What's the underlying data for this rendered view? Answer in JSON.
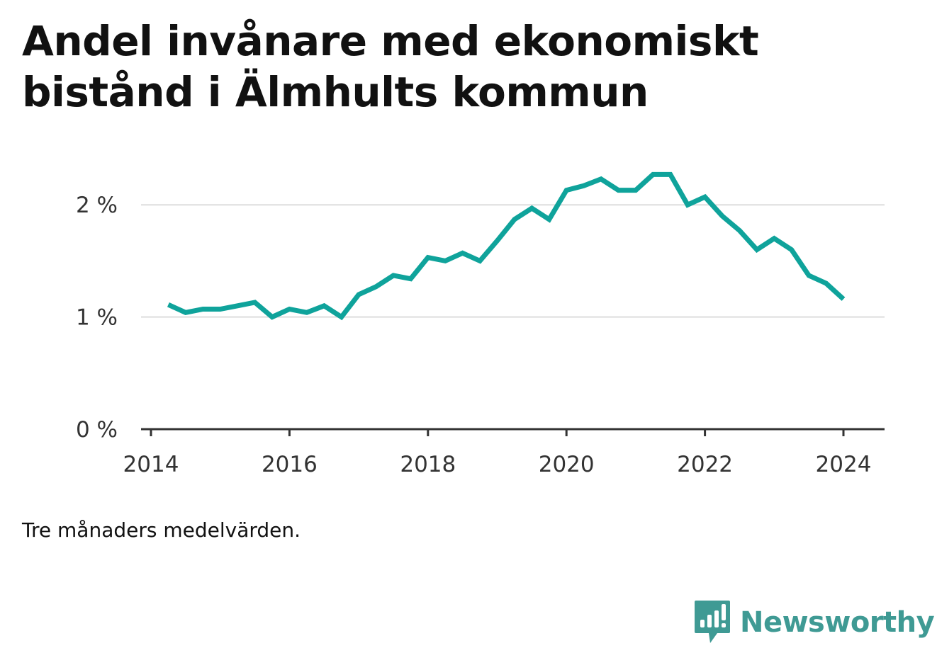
{
  "header": {
    "title": "Andel invånare med ekonomiskt bistånd i Älmhults kommun"
  },
  "footer": {
    "caption": "Tre månaders medelvärden.",
    "brand": "Newsworthy"
  },
  "colors": {
    "line": "#0fa39b",
    "grid": "#dddddd",
    "axis": "#333333",
    "brand": "#3f9a94"
  },
  "chart_data": {
    "type": "line",
    "title": "Andel invånare med ekonomiskt bistånd i Älmhults kommun",
    "xlabel": "",
    "ylabel": "",
    "ylim": [
      0,
      2.5
    ],
    "xlim": [
      "2014-01",
      "2024-08"
    ],
    "grid": true,
    "legend": "none",
    "y_ticks": [
      {
        "value": 0,
        "label": "0 %"
      },
      {
        "value": 1,
        "label": "1 %"
      },
      {
        "value": 2,
        "label": "2 %"
      }
    ],
    "x_ticks": [
      {
        "value": "2014-01",
        "label": "2014"
      },
      {
        "value": "2016-01",
        "label": "2016"
      },
      {
        "value": "2018-01",
        "label": "2018"
      },
      {
        "value": "2020-01",
        "label": "2020"
      },
      {
        "value": "2022-01",
        "label": "2022"
      },
      {
        "value": "2024-01",
        "label": "2024"
      }
    ],
    "series": [
      {
        "values": [
          {
            "x": "2014-04",
            "y": 1.11
          },
          {
            "x": "2014-07",
            "y": 1.04
          },
          {
            "x": "2014-10",
            "y": 1.07
          },
          {
            "x": "2015-01",
            "y": 1.07
          },
          {
            "x": "2015-04",
            "y": 1.1
          },
          {
            "x": "2015-07",
            "y": 1.13
          },
          {
            "x": "2015-10",
            "y": 1.0
          },
          {
            "x": "2016-01",
            "y": 1.07
          },
          {
            "x": "2016-04",
            "y": 1.04
          },
          {
            "x": "2016-07",
            "y": 1.1
          },
          {
            "x": "2016-10",
            "y": 1.0
          },
          {
            "x": "2017-01",
            "y": 1.2
          },
          {
            "x": "2017-04",
            "y": 1.27
          },
          {
            "x": "2017-07",
            "y": 1.37
          },
          {
            "x": "2017-10",
            "y": 1.34
          },
          {
            "x": "2018-01",
            "y": 1.53
          },
          {
            "x": "2018-04",
            "y": 1.5
          },
          {
            "x": "2018-07",
            "y": 1.57
          },
          {
            "x": "2018-10",
            "y": 1.5
          },
          {
            "x": "2019-01",
            "y": 1.68
          },
          {
            "x": "2019-04",
            "y": 1.87
          },
          {
            "x": "2019-07",
            "y": 1.97
          },
          {
            "x": "2019-10",
            "y": 1.87
          },
          {
            "x": "2020-01",
            "y": 2.13
          },
          {
            "x": "2020-04",
            "y": 2.17
          },
          {
            "x": "2020-07",
            "y": 2.23
          },
          {
            "x": "2020-10",
            "y": 2.13
          },
          {
            "x": "2021-01",
            "y": 2.13
          },
          {
            "x": "2021-04",
            "y": 2.27
          },
          {
            "x": "2021-07",
            "y": 2.27
          },
          {
            "x": "2021-10",
            "y": 2.0
          },
          {
            "x": "2022-01",
            "y": 2.07
          },
          {
            "x": "2022-04",
            "y": 1.9
          },
          {
            "x": "2022-07",
            "y": 1.77
          },
          {
            "x": "2022-10",
            "y": 1.6
          },
          {
            "x": "2023-01",
            "y": 1.7
          },
          {
            "x": "2023-04",
            "y": 1.6
          },
          {
            "x": "2023-07",
            "y": 1.37
          },
          {
            "x": "2023-10",
            "y": 1.3
          },
          {
            "x": "2024-01",
            "y": 1.16
          }
        ]
      }
    ]
  }
}
